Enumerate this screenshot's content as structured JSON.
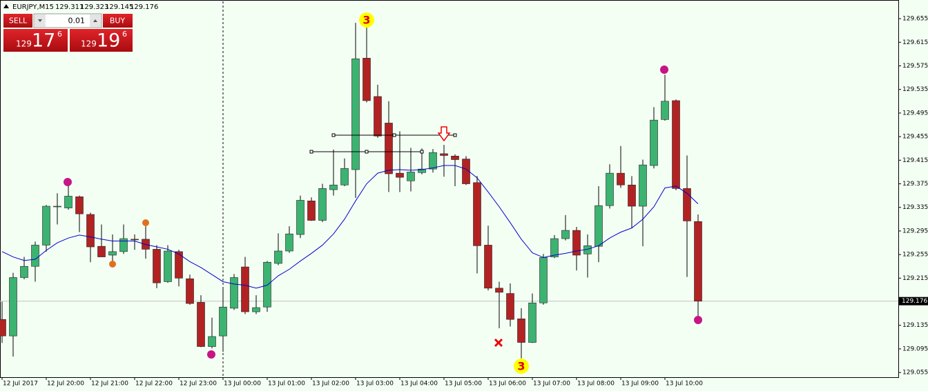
{
  "chart_data": {
    "type": "candlestick",
    "symbol": "EURJPY,M15",
    "categories": [
      "12 Jul 2017",
      null,
      null,
      null,
      "12 Jul 20:00",
      null,
      null,
      null,
      "12 Jul 21:00",
      null,
      null,
      null,
      "12 Jul 22:00",
      null,
      null,
      null,
      "12 Jul 23:00",
      null,
      null,
      null,
      "13 Jul 00:00",
      null,
      null,
      null,
      "13 Jul 01:00",
      null,
      null,
      null,
      "13 Jul 02:00",
      null,
      null,
      null,
      "13 Jul 03:00",
      null,
      null,
      null,
      "13 Jul 04:00",
      null,
      null,
      null,
      "13 Jul 05:00",
      null,
      null,
      null,
      "13 Jul 06:00",
      null,
      null,
      null,
      "13 Jul 07:00",
      null,
      null,
      null,
      "13 Jul 08:00",
      null,
      null,
      null,
      "13 Jul 09:00",
      null,
      null,
      null,
      "13 Jul 10:00",
      null,
      null,
      null
    ],
    "open": [
      129.145,
      129.117,
      129.216,
      129.235,
      129.271,
      129.336,
      129.334,
      129.353,
      129.323,
      129.269,
      129.254,
      129.26,
      129.281,
      129.281,
      129.264,
      129.209,
      129.26,
      129.214,
      129.174,
      129.099,
      129.117,
      129.164,
      129.234,
      129.158,
      129.166,
      129.24,
      129.261,
      129.289,
      129.346,
      129.313,
      129.365,
      129.373,
      129.399,
      129.588,
      129.523,
      129.478,
      129.393,
      129.38,
      129.394,
      129.4,
      129.426,
      129.422,
      129.417,
      129.377,
      129.271,
      129.198,
      129.189,
      129.146,
      129.106,
      129.173,
      129.251,
      129.282,
      129.296,
      129.256,
      129.269,
      129.338,
      129.393,
      129.373,
      129.337,
      129.406,
      129.484,
      129.516,
      129.367,
      129.311
    ],
    "high": [
      129.175,
      129.224,
      129.251,
      129.277,
      129.339,
      129.359,
      129.373,
      129.355,
      129.326,
      129.306,
      129.289,
      129.306,
      129.289,
      129.303,
      129.271,
      129.271,
      129.263,
      129.221,
      129.186,
      129.148,
      129.198,
      129.222,
      129.251,
      129.186,
      129.244,
      129.291,
      129.303,
      129.355,
      129.352,
      129.375,
      129.433,
      129.418,
      129.648,
      129.646,
      129.543,
      129.515,
      129.464,
      129.436,
      129.435,
      129.434,
      129.441,
      129.425,
      129.422,
      129.388,
      129.304,
      129.209,
      129.206,
      129.164,
      129.189,
      129.256,
      129.288,
      129.322,
      129.302,
      129.289,
      129.371,
      129.408,
      129.439,
      129.388,
      129.416,
      129.505,
      129.56,
      129.518,
      129.423,
      129.323
    ],
    "low": [
      129.105,
      129.082,
      129.213,
      129.209,
      129.26,
      129.306,
      129.331,
      129.293,
      129.242,
      129.251,
      129.236,
      129.256,
      129.263,
      129.248,
      129.198,
      129.207,
      129.201,
      129.17,
      129.098,
      129.096,
      129.09,
      129.161,
      129.154,
      129.154,
      129.158,
      129.237,
      129.258,
      129.283,
      129.312,
      129.31,
      129.355,
      129.371,
      129.351,
      129.513,
      129.453,
      129.361,
      129.361,
      129.362,
      129.391,
      129.394,
      129.387,
      129.371,
      129.373,
      129.223,
      129.194,
      129.13,
      129.133,
      129.079,
      129.105,
      129.17,
      129.249,
      129.279,
      129.228,
      129.216,
      129.242,
      129.333,
      129.368,
      129.3,
      129.269,
      129.401,
      129.482,
      129.364,
      129.217,
      129.145
    ],
    "close": [
      129.117,
      129.216,
      129.235,
      129.271,
      129.337,
      129.337,
      129.354,
      129.324,
      129.268,
      129.251,
      129.26,
      129.282,
      129.28,
      129.264,
      129.207,
      129.261,
      129.215,
      129.172,
      129.099,
      129.116,
      129.166,
      129.216,
      129.158,
      129.165,
      129.242,
      129.261,
      129.29,
      129.347,
      129.313,
      129.367,
      129.373,
      129.401,
      129.587,
      129.516,
      129.456,
      129.392,
      129.386,
      129.395,
      129.4,
      129.428,
      129.423,
      129.416,
      129.375,
      129.27,
      129.198,
      129.191,
      129.145,
      129.106,
      129.173,
      129.25,
      129.282,
      129.296,
      129.254,
      129.27,
      129.338,
      129.393,
      129.373,
      129.337,
      129.407,
      129.483,
      129.515,
      129.367,
      129.312,
      129.176
    ],
    "up_color": "#3cb371",
    "down_color": "#b22222",
    "ma": {
      "color": "#0000cd",
      "values": [
        129.26,
        129.251,
        129.245,
        129.247,
        129.262,
        129.275,
        129.283,
        129.288,
        129.285,
        129.281,
        129.278,
        129.278,
        129.278,
        129.272,
        129.268,
        129.264,
        129.256,
        129.243,
        129.233,
        129.221,
        129.209,
        129.205,
        129.203,
        129.198,
        129.203,
        129.219,
        129.23,
        129.244,
        129.257,
        129.271,
        129.29,
        129.315,
        129.346,
        129.375,
        129.393,
        129.398,
        129.399,
        129.398,
        129.399,
        129.402,
        129.406,
        129.406,
        129.4,
        129.385,
        129.361,
        129.336,
        129.309,
        129.281,
        129.258,
        129.25,
        129.254,
        129.257,
        129.261,
        129.264,
        129.27,
        129.283,
        129.293,
        129.3,
        129.315,
        129.336,
        129.368,
        129.371,
        129.359,
        129.341
      ]
    },
    "ylim": [
      129.047,
      129.682
    ],
    "yticks": [
      129.655,
      129.615,
      129.575,
      129.535,
      129.495,
      129.455,
      129.415,
      129.375,
      129.335,
      129.295,
      129.255,
      129.215,
      129.135,
      129.095,
      129.055
    ],
    "current_price": 129.176,
    "annotations": [
      "3",
      "3"
    ]
  },
  "trade_panel": {
    "sell": "SELL",
    "buy": "BUY",
    "lot": "0.01",
    "sell_price": {
      "big_figure": "129",
      "pips": "17",
      "fraction": "6"
    },
    "buy_price": {
      "big_figure": "129",
      "pips": "19",
      "fraction": "6"
    }
  }
}
